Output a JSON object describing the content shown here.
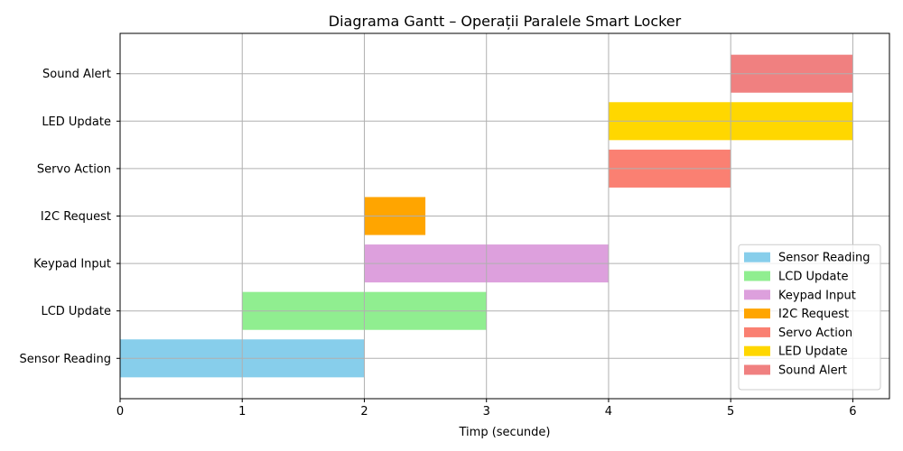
{
  "chart_data": {
    "type": "bar",
    "orientation": "horizontal",
    "title": "Diagrama Gantt – Operații Paralele Smart Locker",
    "xlabel": "Timp (secunde)",
    "ylabel": "",
    "xlim": [
      0,
      6.3
    ],
    "xticks": [
      "0",
      "1",
      "2",
      "3",
      "4",
      "5",
      "6"
    ],
    "grid": true,
    "legend_position": "bottom-right",
    "tasks": [
      {
        "name": "Sensor Reading",
        "start": 0,
        "end": 2,
        "color": "#87CEEB"
      },
      {
        "name": "LCD Update",
        "start": 1,
        "end": 3,
        "color": "#90EE90"
      },
      {
        "name": "Keypad Input",
        "start": 2,
        "end": 4,
        "color": "#DDA0DD"
      },
      {
        "name": "I2C Request",
        "start": 2,
        "end": 2.5,
        "color": "#FFA500"
      },
      {
        "name": "Servo Action",
        "start": 4,
        "end": 5,
        "color": "#FA8072"
      },
      {
        "name": "LED Update",
        "start": 4,
        "end": 6,
        "color": "#FFD700"
      },
      {
        "name": "Sound Alert",
        "start": 5,
        "end": 6,
        "color": "#F08080"
      }
    ]
  }
}
